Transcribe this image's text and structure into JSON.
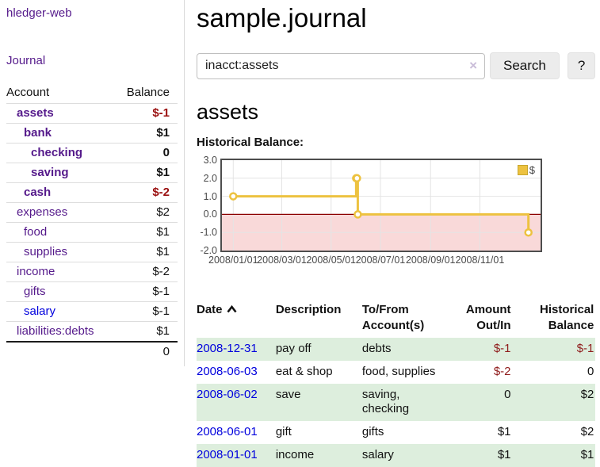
{
  "app": {
    "brand": "hledger-web"
  },
  "nav": {
    "journal": "Journal"
  },
  "sidebar": {
    "columns": {
      "account": "Account",
      "balance": "Balance"
    },
    "accounts": [
      {
        "name": "assets",
        "balance": "$-1"
      },
      {
        "name": "bank",
        "balance": "$1"
      },
      {
        "name": "checking",
        "balance": "0"
      },
      {
        "name": "saving",
        "balance": "$1"
      },
      {
        "name": "cash",
        "balance": "$-2"
      },
      {
        "name": "expenses",
        "balance": "$2"
      },
      {
        "name": "food",
        "balance": "$1"
      },
      {
        "name": "supplies",
        "balance": "$1"
      },
      {
        "name": "income",
        "balance": "$-2"
      },
      {
        "name": "gifts",
        "balance": "$-1"
      },
      {
        "name": "salary",
        "balance": "$-1"
      },
      {
        "name": "liabilities:debts",
        "balance": "$1"
      }
    ],
    "total": "0"
  },
  "main": {
    "title": "sample.journal",
    "search": {
      "value": "inacct:assets",
      "clear_icon": "×",
      "search_label": "Search",
      "help_label": "?"
    },
    "account_heading": "assets",
    "chart_title": "Historical Balance:"
  },
  "chart_data": {
    "type": "line",
    "step": true,
    "title": "Historical Balance",
    "series": [
      {
        "name": "$",
        "color": "#edc240",
        "points": [
          [
            "2008-01-01",
            1
          ],
          [
            "2008-06-01",
            2
          ],
          [
            "2008-06-02",
            2
          ],
          [
            "2008-06-03",
            0
          ],
          [
            "2008-12-31",
            -1
          ]
        ]
      }
    ],
    "ylim": [
      -2,
      3
    ],
    "ytick_values": [
      3,
      2,
      1,
      0,
      -1,
      -2
    ],
    "yticks": [
      "3.0",
      "2.0",
      "1.0",
      "0.0",
      "-1.0",
      "-2.0"
    ],
    "xticks": [
      "2008/01/01",
      "2008/03/01",
      "2008/05/01",
      "2008/07/01",
      "2008/09/01",
      "2008/11/01"
    ],
    "x_range": [
      "2007-12-18",
      "2009-01-15"
    ],
    "legend": {
      "label": "$",
      "position": "top-right"
    },
    "grid": true,
    "zero_line_color": "#8b0000",
    "negative_fill": "#f9d9d9",
    "line_color": "#edc240"
  },
  "register": {
    "headers": [
      "Date",
      "Description",
      "To/From Account(s)",
      "Amount Out/In",
      "Historical Balance"
    ],
    "rows": [
      {
        "date": "2008-12-31",
        "description": "pay off",
        "accounts": "debts",
        "amount": "$-1",
        "balance": "$-1"
      },
      {
        "date": "2008-06-03",
        "description": "eat & shop",
        "accounts": "food, supplies",
        "amount": "$-2",
        "balance": "0"
      },
      {
        "date": "2008-06-02",
        "description": "save",
        "accounts": "saving, checking",
        "amount": "0",
        "balance": "$2"
      },
      {
        "date": "2008-06-01",
        "description": "gift",
        "accounts": "gifts",
        "amount": "$1",
        "balance": "$2"
      },
      {
        "date": "2008-01-01",
        "description": "income",
        "accounts": "salary",
        "amount": "$1",
        "balance": "$1"
      }
    ]
  }
}
